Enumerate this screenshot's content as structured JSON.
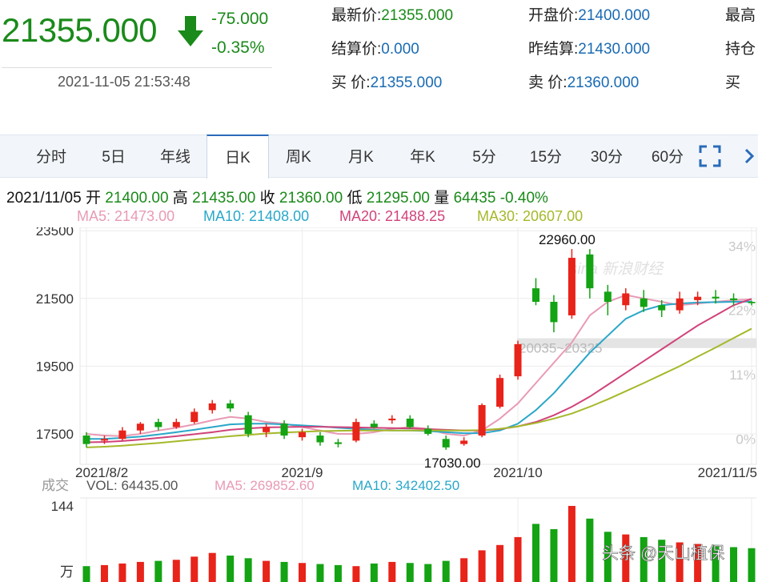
{
  "quote": {
    "last_price": "21355.000",
    "change": "-75.000",
    "change_pct": "-0.35%",
    "timestamp": "2021-11-05 21:53:48",
    "fields": [
      {
        "label": "最新价:",
        "value": "21355.000",
        "green": true
      },
      {
        "label": "开盘价:",
        "value": "21400.000",
        "green": false
      },
      {
        "label": "最高",
        "value": "",
        "green": false
      },
      {
        "label": "结算价:",
        "value": "0.000",
        "green": false
      },
      {
        "label": "昨结算:",
        "value": "21430.000",
        "green": false
      },
      {
        "label": "持仓",
        "value": "",
        "green": false
      },
      {
        "label": "买  价:",
        "value": "21355.000",
        "green": false
      },
      {
        "label": "卖  价:",
        "value": "21360.000",
        "green": false
      },
      {
        "label": "买",
        "value": "",
        "green": false
      }
    ]
  },
  "tabs": [
    "分时",
    "5日",
    "年线",
    "日K",
    "周K",
    "月K",
    "年K",
    "5分",
    "15分",
    "30分",
    "60分"
  ],
  "active_tab": "日K",
  "day_info": {
    "date": "2021/11/05",
    "open_label": "开",
    "open": "21400.00",
    "high_label": "高",
    "high": "21435.00",
    "close_label": "收",
    "close": "21360.00",
    "low_label": "低",
    "low": "21295.00",
    "vol_label": "量",
    "vol": "64435",
    "pct": "-0.40%"
  },
  "ma_legend": [
    {
      "text": "MA5: 21473.00",
      "color": "#e89ab5"
    },
    {
      "text": "MA10: 21408.00",
      "color": "#2aa7c9"
    },
    {
      "text": "MA20: 21488.25",
      "color": "#d0437a"
    },
    {
      "text": "MA30: 20607.00",
      "color": "#a6b82a"
    }
  ],
  "vol_legend": {
    "label": "成交",
    "vol": "VOL: 64435.00",
    "ma5": "MA5: 269852.60",
    "ma10": "MA10: 342402.50",
    "max": "144",
    "unit": "万"
  },
  "watermark": "sina 新浪财经",
  "credit": "头条 @天山植保",
  "colors": {
    "up": "#e8231a",
    "down": "#13a313",
    "accent": "#2a6bb8"
  },
  "chart_data": {
    "type": "candlestick",
    "y_ticks": [
      "23500",
      "21500",
      "19500",
      "17500"
    ],
    "y_tick_values": [
      23500,
      21500,
      19500,
      17500
    ],
    "ylim": [
      16600,
      23600
    ],
    "pct_ticks": [
      "34%",
      "22%",
      "11%",
      "0%"
    ],
    "pct_tick_values": [
      23050,
      21150,
      19250,
      17350
    ],
    "x_ticks": [
      "2021/8/2",
      "2021/9",
      "2021/10",
      "2021/11/5"
    ],
    "x_tick_index": [
      0,
      12,
      24,
      37
    ],
    "annotations": {
      "max_label": "22960.00",
      "max_index": 27,
      "max_value": 22960,
      "min_label": "17030.00",
      "min_index": 20,
      "min_value": 17030,
      "band_label": "20035~20325",
      "band_low": 20035,
      "band_high": 20325
    },
    "candles": [
      {
        "o": 17450,
        "c": 17200,
        "h": 17550,
        "l": 17100
      },
      {
        "o": 17300,
        "c": 17350,
        "h": 17450,
        "l": 17200
      },
      {
        "o": 17350,
        "c": 17600,
        "h": 17700,
        "l": 17300
      },
      {
        "o": 17600,
        "c": 17800,
        "h": 17850,
        "l": 17500
      },
      {
        "o": 17850,
        "c": 17700,
        "h": 17950,
        "l": 17600
      },
      {
        "o": 17700,
        "c": 17850,
        "h": 17950,
        "l": 17650
      },
      {
        "o": 17850,
        "c": 18150,
        "h": 18250,
        "l": 17800
      },
      {
        "o": 18200,
        "c": 18400,
        "h": 18500,
        "l": 18100
      },
      {
        "o": 18400,
        "c": 18250,
        "h": 18500,
        "l": 18150
      },
      {
        "o": 18050,
        "c": 17500,
        "h": 18150,
        "l": 17400
      },
      {
        "o": 17550,
        "c": 17700,
        "h": 17800,
        "l": 17400
      },
      {
        "o": 17800,
        "c": 17450,
        "h": 17900,
        "l": 17350
      },
      {
        "o": 17400,
        "c": 17550,
        "h": 17650,
        "l": 17300
      },
      {
        "o": 17450,
        "c": 17250,
        "h": 17550,
        "l": 17150
      },
      {
        "o": 17250,
        "c": 17200,
        "h": 17350,
        "l": 17100
      },
      {
        "o": 17300,
        "c": 17850,
        "h": 17950,
        "l": 17250
      },
      {
        "o": 17800,
        "c": 17700,
        "h": 17900,
        "l": 17650
      },
      {
        "o": 17900,
        "c": 17950,
        "h": 18050,
        "l": 17800
      },
      {
        "o": 17950,
        "c": 17700,
        "h": 18050,
        "l": 17650
      },
      {
        "o": 17650,
        "c": 17500,
        "h": 17750,
        "l": 17450
      },
      {
        "o": 17350,
        "c": 17100,
        "h": 17450,
        "l": 17030
      },
      {
        "o": 17200,
        "c": 17300,
        "h": 17400,
        "l": 17150
      },
      {
        "o": 17450,
        "c": 18350,
        "h": 18400,
        "l": 17400
      },
      {
        "o": 18300,
        "c": 19150,
        "h": 19250,
        "l": 18250
      },
      {
        "o": 19200,
        "c": 20150,
        "h": 20250,
        "l": 19100
      },
      {
        "o": 21800,
        "c": 21400,
        "h": 22100,
        "l": 21300
      },
      {
        "o": 21400,
        "c": 20800,
        "h": 21600,
        "l": 20500
      },
      {
        "o": 21000,
        "c": 22700,
        "h": 22960,
        "l": 20900
      },
      {
        "o": 22800,
        "c": 21800,
        "h": 22960,
        "l": 21500
      },
      {
        "o": 21700,
        "c": 21400,
        "h": 21900,
        "l": 21000
      },
      {
        "o": 21300,
        "c": 21650,
        "h": 21800,
        "l": 21150
      },
      {
        "o": 21500,
        "c": 21250,
        "h": 21750,
        "l": 21100
      },
      {
        "o": 21300,
        "c": 21150,
        "h": 21450,
        "l": 20950
      },
      {
        "o": 21150,
        "c": 21500,
        "h": 21700,
        "l": 21050
      },
      {
        "o": 21450,
        "c": 21550,
        "h": 21700,
        "l": 21300
      },
      {
        "o": 21550,
        "c": 21500,
        "h": 21750,
        "l": 21350
      },
      {
        "o": 21500,
        "c": 21450,
        "h": 21650,
        "l": 21300
      },
      {
        "o": 21400,
        "c": 21360,
        "h": 21435,
        "l": 21295
      }
    ],
    "ma_series": [
      {
        "name": "MA5",
        "color": "#e89ab5",
        "values": [
          17500,
          17450,
          17430,
          17500,
          17600,
          17680,
          17780,
          17900,
          18000,
          17950,
          17850,
          17800,
          17700,
          17600,
          17500,
          17500,
          17550,
          17650,
          17700,
          17650,
          17500,
          17450,
          17600,
          17950,
          18400,
          19000,
          19600,
          20200,
          21000,
          21400,
          21600,
          21500,
          21400,
          21300,
          21350,
          21400,
          21450,
          21473
        ]
      },
      {
        "name": "MA10",
        "color": "#2aa7c9",
        "values": [
          17350,
          17350,
          17380,
          17420,
          17480,
          17550,
          17620,
          17700,
          17780,
          17800,
          17800,
          17780,
          17750,
          17720,
          17680,
          17650,
          17620,
          17600,
          17600,
          17580,
          17550,
          17520,
          17520,
          17600,
          17800,
          18200,
          18700,
          19300,
          19900,
          20400,
          20900,
          21150,
          21300,
          21350,
          21380,
          21390,
          21400,
          21408
        ]
      },
      {
        "name": "MA20",
        "color": "#d0437a",
        "values": [
          17250,
          17260,
          17290,
          17330,
          17380,
          17430,
          17490,
          17550,
          17620,
          17660,
          17690,
          17700,
          17710,
          17710,
          17700,
          17690,
          17680,
          17670,
          17660,
          17640,
          17620,
          17600,
          17600,
          17640,
          17720,
          17850,
          18050,
          18300,
          18600,
          18950,
          19300,
          19650,
          20000,
          20350,
          20700,
          21000,
          21300,
          21488
        ]
      },
      {
        "name": "MA30",
        "color": "#a6b82a",
        "values": [
          17100,
          17120,
          17150,
          17190,
          17230,
          17280,
          17330,
          17380,
          17430,
          17470,
          17510,
          17540,
          17560,
          17580,
          17590,
          17600,
          17600,
          17600,
          17600,
          17600,
          17600,
          17600,
          17610,
          17650,
          17720,
          17820,
          17950,
          18100,
          18300,
          18520,
          18760,
          19000,
          19250,
          19500,
          19780,
          20050,
          20330,
          20607
        ]
      }
    ],
    "volume": [
      30,
      32,
      35,
      38,
      40,
      42,
      48,
      55,
      50,
      45,
      40,
      38,
      36,
      34,
      32,
      30,
      35,
      38,
      36,
      34,
      40,
      45,
      60,
      70,
      85,
      110,
      100,
      144,
      120,
      95,
      90,
      85,
      80,
      75,
      72,
      70,
      66,
      64
    ]
  }
}
